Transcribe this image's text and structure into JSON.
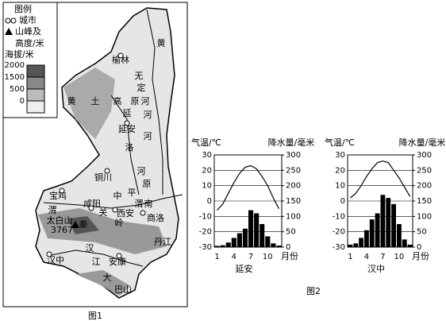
{
  "map": {
    "caption": "图1",
    "legend": {
      "title": "图例",
      "city": "城市",
      "peak": [
        "山峰及",
        "高度/米"
      ],
      "elevation_title": "海拔/米",
      "elevation_levels": [
        2000,
        1500,
        500,
        0
      ]
    },
    "labels": [
      "黄",
      "榆林",
      "无",
      "定",
      "河",
      "黄",
      "土",
      "高",
      "原",
      "延",
      "河",
      "延安",
      "洛",
      "河",
      "铜川",
      "河",
      "原",
      "宝鸡",
      "中",
      "平",
      "渭",
      "咸阳",
      "南",
      "渭",
      "太白山",
      "关",
      "西安",
      "岭",
      "3767",
      "秦",
      "商洛",
      "丹江",
      "汉中",
      "汉",
      "江",
      "安康",
      "大",
      "巴山"
    ]
  },
  "figure2_caption": "图2",
  "chart_data": [
    {
      "type": "climate",
      "station": "延安",
      "temp_label": "气温/℃",
      "precip_label": "降水量/毫米",
      "x_label": "月份",
      "categories": [
        1,
        null,
        null,
        4,
        null,
        null,
        7,
        null,
        null,
        10,
        null,
        null
      ],
      "temperature": [
        -6,
        -2,
        5,
        12,
        18,
        22,
        23,
        21,
        16,
        10,
        2,
        -5
      ],
      "precipitation": [
        4,
        6,
        15,
        30,
        45,
        60,
        120,
        110,
        75,
        35,
        12,
        5
      ],
      "ylim": [
        -30,
        30
      ],
      "yticks": [
        30,
        20,
        10,
        0,
        -10,
        -20,
        -30
      ],
      "y2lim": [
        0,
        300
      ],
      "y2ticks": [
        300,
        250,
        200,
        150,
        100,
        50,
        0
      ]
    },
    {
      "type": "climate",
      "station": "汉中",
      "temp_label": "气温/℃",
      "precip_label": "降水量/毫米",
      "x_label": "月份",
      "categories": [
        1,
        null,
        null,
        4,
        null,
        null,
        7,
        null,
        null,
        10,
        null,
        null
      ],
      "temperature": [
        2,
        5,
        10,
        16,
        21,
        25,
        26,
        25,
        20,
        15,
        9,
        3
      ],
      "precipitation": [
        8,
        12,
        30,
        55,
        90,
        110,
        170,
        160,
        140,
        75,
        25,
        8
      ],
      "ylim": [
        -30,
        30
      ],
      "yticks": [
        30,
        20,
        10,
        0,
        -10,
        -20,
        -30
      ],
      "y2lim": [
        0,
        300
      ],
      "y2ticks": [
        300,
        250,
        200,
        150,
        100,
        50,
        0
      ]
    }
  ]
}
